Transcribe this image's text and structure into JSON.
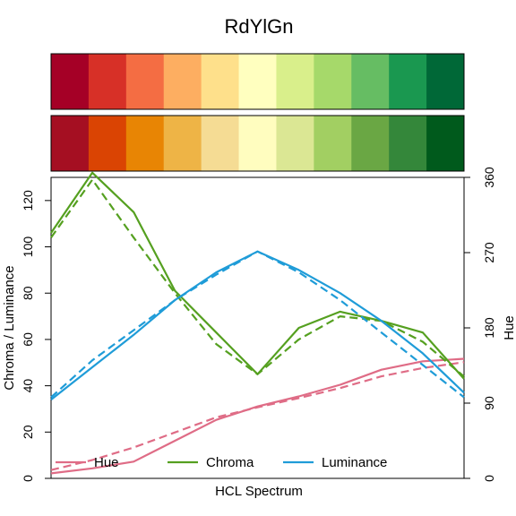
{
  "colors": {
    "hue": "#DF6C86",
    "chroma": "#55A020",
    "luminance": "#1F9CD8"
  },
  "chart_data": {
    "type": "line",
    "title": "RdYlGn",
    "xlabel": "HCL Spectrum",
    "ylabel_left": "Chroma / Luminance",
    "ylabel_right": "Hue",
    "ylim_left": [
      0,
      130
    ],
    "ylim_right": [
      0,
      360
    ],
    "yticks_left": [
      "0",
      "20",
      "40",
      "60",
      "80",
      "100",
      "120"
    ],
    "yticks_right": [
      "0",
      "90",
      "180",
      "270",
      "360"
    ],
    "swatches_top": [
      "#A50026",
      "#D73027",
      "#F46D43",
      "#FDAE61",
      "#FEE08B",
      "#FFFFBF",
      "#D9EF8B",
      "#A6D96A",
      "#66BD63",
      "#1A9850",
      "#006837"
    ],
    "swatches_bottom": [
      "#A50F22",
      "#DA4403",
      "#E88504",
      "#EEB446",
      "#F5DC94",
      "#FFFDBF",
      "#DBE794",
      "#A2CF62",
      "#6AA744",
      "#34873A",
      "#005A1C"
    ],
    "x": [
      1,
      2,
      3,
      4,
      5,
      6,
      7,
      8,
      9,
      10,
      11
    ],
    "series": [
      {
        "name": "Hue",
        "axis": "right",
        "style": "solid",
        "values": [
          6,
          12,
          20,
          45,
          70,
          86,
          98,
          112,
          130,
          140,
          143
        ]
      },
      {
        "name": "Hue",
        "axis": "right",
        "style": "dashed",
        "values": [
          10,
          22,
          37,
          55,
          73,
          85,
          96,
          108,
          122,
          132,
          139
        ]
      },
      {
        "name": "Chroma",
        "axis": "left",
        "style": "solid",
        "values": [
          106,
          132,
          115,
          81,
          63,
          45,
          65,
          72,
          68,
          63,
          43
        ]
      },
      {
        "name": "Chroma",
        "axis": "left",
        "style": "dashed",
        "values": [
          104,
          129,
          104,
          80,
          58,
          45,
          60,
          70,
          68,
          59,
          44
        ]
      },
      {
        "name": "Luminance",
        "axis": "left",
        "style": "solid",
        "values": [
          34,
          48,
          62,
          77,
          89,
          98,
          90,
          80,
          68,
          54,
          37
        ]
      },
      {
        "name": "Luminance",
        "axis": "left",
        "style": "dashed",
        "values": [
          35,
          51,
          64,
          77,
          88,
          98,
          89,
          77,
          63,
          49,
          35
        ]
      }
    ],
    "legend": [
      "Hue",
      "Chroma",
      "Luminance"
    ],
    "legend_position": "bottom"
  }
}
